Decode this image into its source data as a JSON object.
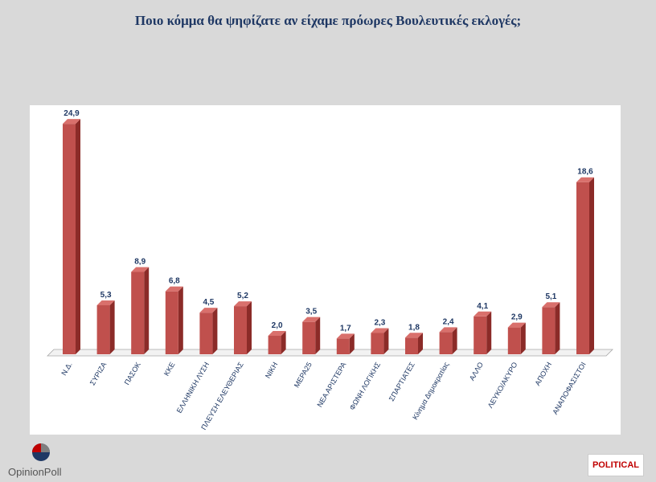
{
  "title": "Ποιο κόμμα θα ψηφίζατε αν είχαμε πρόωρες Βουλευτικές εκλογές;",
  "chart_data": {
    "type": "bar",
    "categories": [
      "Ν.Δ.",
      "ΣΥΡΙΖΑ",
      "ΠΑΣΟΚ",
      "ΚΚΕ",
      "ΕΛΛΗΝΙΚΗ ΛΥΣΗ",
      "ΠΛΕΥΣΗ ΕΛΕΥΘΕΡΙΑΣ",
      "ΝΙΚΗ",
      "ΜΕΡΑ25",
      "ΝΕΑ ΑΡΙΣΤΕΡΑ",
      "ΦΩΝΗ ΛΟΓΙΚΗΣ",
      "ΣΠΑΡΤΙΑΤΕΣ",
      "Κίνημα Δημοκρατίας",
      "ΑΛΛΟ",
      "ΛΕΥΚΟ/ΑΚΥΡΟ",
      "ΑΠΟΧΗ",
      "ΑΝΑΠΟΦΑΣΙΣΤΟΙ"
    ],
    "values": [
      24.9,
      5.3,
      8.9,
      6.8,
      4.5,
      5.2,
      2.0,
      3.5,
      1.7,
      2.3,
      1.8,
      2.4,
      4.1,
      2.9,
      5.1,
      18.6
    ],
    "value_labels": [
      "24,9",
      "5,3",
      "8,9",
      "6,8",
      "4,5",
      "5,2",
      "2,0",
      "3,5",
      "1,7",
      "2,3",
      "1,8",
      "2,4",
      "4,1",
      "2,9",
      "5,1",
      "18,6"
    ],
    "title": "Ποιο κόμμα θα ψηφίζατε αν είχαμε πρόωρες Βουλευτικές εκλογές;",
    "xlabel": "",
    "ylabel": "",
    "ylim": [
      0,
      25
    ],
    "grid": false,
    "legend": "none",
    "colors": {
      "bar_front": "#c0504d",
      "bar_side": "#8b2b28",
      "bar_top": "#d9706c",
      "label": "#1f3864"
    }
  },
  "logos": {
    "left": "OpinionPoll",
    "right": "POLITICAL"
  }
}
